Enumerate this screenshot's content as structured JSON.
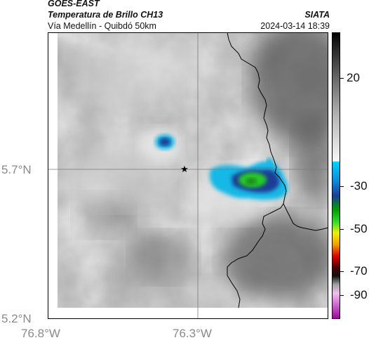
{
  "header": {
    "satellite": "GOES-EAST",
    "product": "Temperatura de Brillo CH13",
    "region": "Vía Medellín - Quibdó 50km",
    "agency": "SIATA",
    "timestamp": "2024-03-14 18:39"
  },
  "map": {
    "y_axis": [
      "5.7°N",
      "5.2°N"
    ],
    "x_axis": [
      "76.8°W",
      "76.3°W"
    ],
    "marker_icon": "star-icon"
  },
  "colorbar": {
    "ticks": [
      "20",
      "-30",
      "-50",
      "-70",
      "-90"
    ]
  },
  "colors": {
    "cold_cyan": "#14b8e6",
    "cold_blue": "#1e3c96",
    "cold_green": "#28c828",
    "border": "#000000"
  }
}
